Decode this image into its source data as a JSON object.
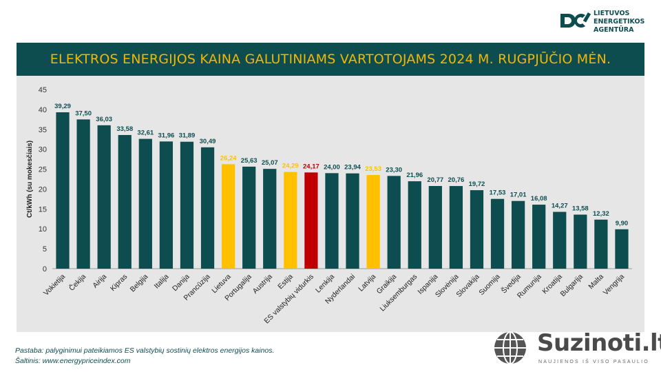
{
  "logo": {
    "text": "LIETUVOS\nENERGETIKOS\nAGENTŪRA"
  },
  "title": "ELEKTROS ENERGIJOS KAINA GALUTINIAMS VARTOTOJAMS 2024 M. RUGPJŪČIO MĖN.",
  "colors": {
    "default": "#0d4d50",
    "highlight": "#ffc000",
    "average": "#c00000",
    "title_bg": "#0d4d50",
    "title_text": "#f2b705",
    "plot_bg": "#e7e6e6"
  },
  "chart_data": {
    "type": "bar",
    "ylabel": "Ct/kWh (su mokesčiais)",
    "ylim": [
      0,
      45
    ],
    "yticks": [
      0,
      5,
      10,
      15,
      20,
      25,
      30,
      35,
      40,
      45
    ],
    "grid": false,
    "categories": [
      "Vokietija",
      "Čekija",
      "Airija",
      "Kipras",
      "Belgija",
      "Italija",
      "Danija",
      "Prancūzija",
      "Lietuva",
      "Portugalija",
      "Austrija",
      "Estija",
      "ES valstybių vidurkis",
      "Lenkija",
      "Nyderlandai",
      "Latvija",
      "Graikija",
      "Liuksemburgas",
      "Ispanija",
      "Slovėnija",
      "Slovakija",
      "Suomija",
      "Švedija",
      "Rumunija",
      "Kroatija",
      "Bulgarija",
      "Malta",
      "Vengrija"
    ],
    "values": [
      39.29,
      37.5,
      36.03,
      33.58,
      32.61,
      31.96,
      31.89,
      30.49,
      26.24,
      25.63,
      25.07,
      24.29,
      24.17,
      24.0,
      23.94,
      23.53,
      23.3,
      21.96,
      20.77,
      20.76,
      19.72,
      17.53,
      17.01,
      16.08,
      14.27,
      13.58,
      12.32,
      9.9
    ],
    "labels": [
      "39,29",
      "37,50",
      "36,03",
      "33,58",
      "32,61",
      "31,96",
      "31,89",
      "30,49",
      "26,24",
      "25,63",
      "25,07",
      "24,29",
      "24,17",
      "24,00",
      "23,94",
      "23,53",
      "23,30",
      "21,96",
      "20,77",
      "20,76",
      "19,72",
      "17,53",
      "17,01",
      "16,08",
      "14,27",
      "13,58",
      "12,32",
      "9,90"
    ],
    "highlight": [
      "Lietuva",
      "Estija",
      "Latvija"
    ],
    "average": "ES valstybių vidurkis"
  },
  "footer": {
    "note": "Pastaba: palyginimui pateikiamos ES valstybių sostinių elektros energijos kainos.",
    "source": "Šaltinis: www.energypriceindex.com"
  },
  "brand": {
    "name": "Suzinoti.lt",
    "tagline": "NAUJIENOS IŠ VISO PASAULIO"
  }
}
